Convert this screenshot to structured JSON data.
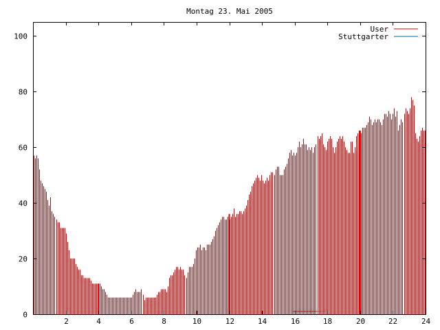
{
  "chart_data": {
    "type": "bar",
    "title": "Montag 23. Mai 2005",
    "xlabel": "",
    "ylabel": "",
    "xlim": [
      0,
      24
    ],
    "ylim": [
      0,
      105
    ],
    "x_ticks": [
      2,
      4,
      6,
      8,
      10,
      12,
      14,
      16,
      18,
      20,
      22,
      24
    ],
    "y_ticks": [
      0,
      20,
      40,
      60,
      80,
      100
    ],
    "grid": false,
    "legend_position": "top-right",
    "series": [
      {
        "name": "User",
        "color": "#e00000",
        "x_start": 0,
        "x_end": 24,
        "values": [
          57,
          56,
          57,
          56,
          52,
          48,
          47,
          46,
          45,
          44,
          41,
          39,
          42,
          37,
          36,
          35,
          34,
          33,
          33,
          31,
          31,
          31,
          31,
          29,
          26,
          23,
          20,
          20,
          20,
          20,
          18,
          17,
          16,
          16,
          14,
          14,
          13,
          13,
          13,
          13,
          13,
          12,
          11,
          11,
          11,
          11,
          11,
          11,
          10,
          9,
          9,
          8,
          7,
          6,
          6,
          6,
          6,
          6,
          6,
          6,
          6,
          6,
          6,
          6,
          6,
          6,
          6,
          6,
          6,
          6,
          6,
          7,
          8,
          9,
          8,
          8,
          8,
          9,
          7,
          5,
          6,
          6,
          6,
          6,
          6,
          6,
          6,
          6,
          7,
          8,
          8,
          9,
          9,
          9,
          9,
          8,
          10,
          13,
          14,
          14,
          15,
          16,
          17,
          17,
          16,
          17,
          16,
          16,
          14,
          13,
          15,
          17,
          17,
          17,
          18,
          20,
          23,
          24,
          24,
          25,
          23,
          24,
          24,
          23,
          25,
          25,
          25,
          26,
          27,
          28,
          30,
          31,
          32,
          33,
          34,
          35,
          35,
          34,
          34,
          35,
          34,
          35,
          36,
          38,
          35,
          36,
          36,
          37,
          37,
          36,
          37,
          38,
          39,
          41,
          43,
          44,
          46,
          47,
          48,
          49,
          50,
          49,
          48,
          50,
          48,
          47,
          48,
          49,
          48,
          50,
          51,
          51,
          50,
          52,
          53,
          53,
          50,
          50,
          50,
          52,
          53,
          54,
          56,
          58,
          59,
          57,
          58,
          57,
          58,
          60,
          62,
          60,
          61,
          63,
          61,
          61,
          59,
          60,
          59,
          60,
          58,
          60,
          61,
          64,
          63,
          64,
          65,
          61,
          60,
          59,
          62,
          63,
          64,
          63,
          60,
          58,
          60,
          62,
          63,
          64,
          63,
          64,
          62,
          60,
          59,
          58,
          58,
          62,
          62,
          58,
          60,
          64,
          65,
          66,
          65,
          67,
          67,
          67,
          68,
          69,
          71,
          70,
          68,
          69,
          70,
          69,
          70,
          70,
          69,
          68,
          70,
          72,
          72,
          71,
          73,
          72,
          70,
          72,
          74,
          71,
          73,
          66,
          68,
          70,
          69,
          72,
          74,
          73,
          72,
          74,
          78,
          77,
          75,
          65,
          63,
          62,
          64,
          66,
          67,
          66,
          66
        ]
      },
      {
        "name": "Stuttgarter",
        "color": "#0066aa",
        "values": []
      }
    ],
    "markers": [
      {
        "x": 4.0,
        "value": 11,
        "color": "#e00000"
      },
      {
        "x": 12.0,
        "value": 36,
        "color": "#e00000"
      },
      {
        "x": 20.0,
        "value": 66,
        "color": "#e00000"
      },
      {
        "x_from": 15.9,
        "x_to": 17.9,
        "value": 1,
        "color": "#000000",
        "style": "dotted"
      }
    ]
  }
}
